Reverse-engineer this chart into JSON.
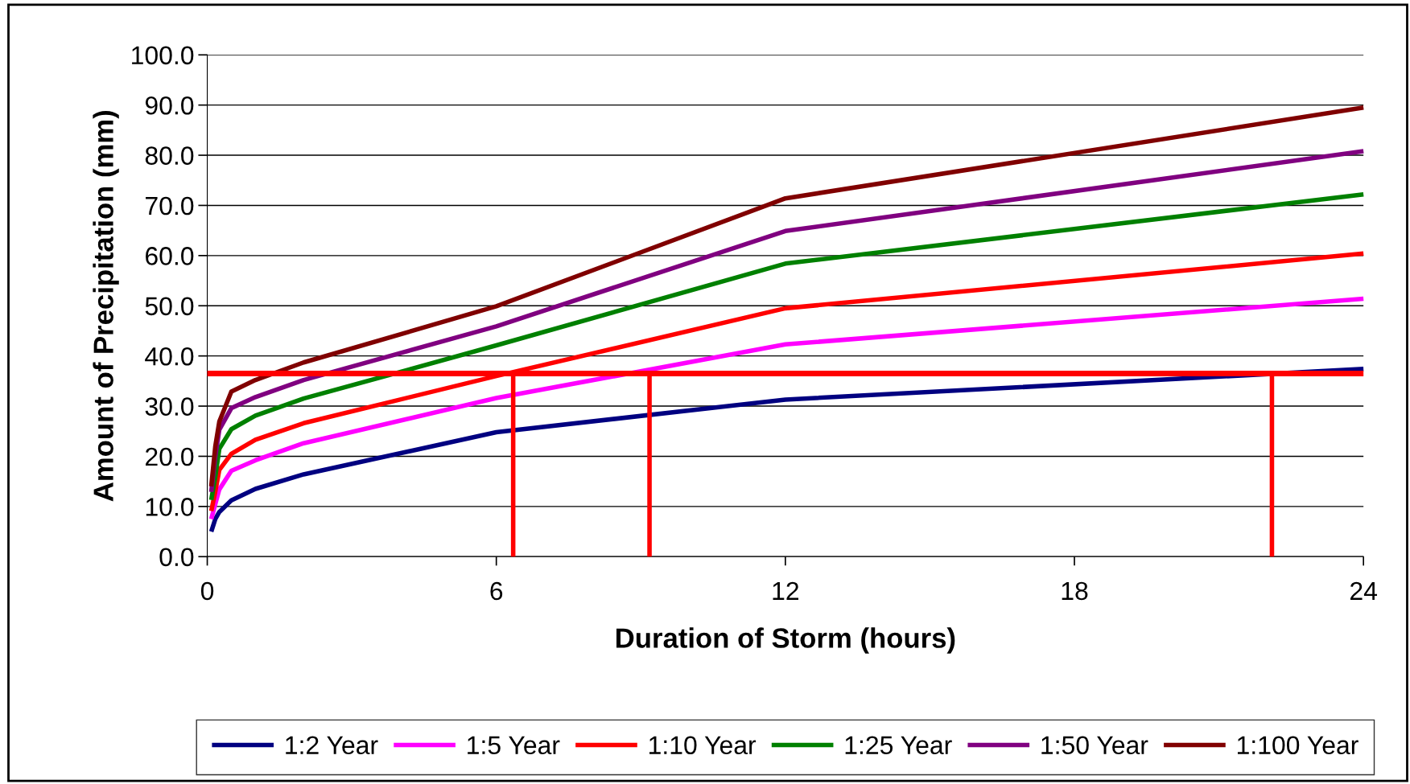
{
  "chart_data": {
    "type": "line",
    "xlabel": "Duration of Storm (hours)",
    "ylabel": "Amount of Precipitation (mm)",
    "xlim": [
      0,
      24
    ],
    "xticks": [
      0,
      6,
      12,
      18,
      24
    ],
    "ylim": [
      0,
      100
    ],
    "yticks": [
      {
        "value": 0,
        "label": "0.0"
      },
      {
        "value": 10,
        "label": "10.0"
      },
      {
        "value": 20,
        "label": "20.0"
      },
      {
        "value": 30,
        "label": "30.0"
      },
      {
        "value": 40,
        "label": "40.0"
      },
      {
        "value": 50,
        "label": "50.0"
      },
      {
        "value": 60,
        "label": "60.0"
      },
      {
        "value": 70,
        "label": "70.0"
      },
      {
        "value": 80,
        "label": "80.0"
      },
      {
        "value": 90,
        "label": "90.0"
      },
      {
        "value": 100,
        "label": "100.0"
      }
    ],
    "grid": "y",
    "legend": "bottom",
    "marker": "none",
    "line_style": "solid",
    "x": [
      0.083,
      0.167,
      0.25,
      0.5,
      1,
      2,
      6,
      12,
      24
    ],
    "series": [
      {
        "name": "1:2 Year",
        "color": "#000080",
        "values": [
          5.0,
          7.5,
          8.9,
          11.2,
          13.5,
          16.4,
          24.8,
          31.3,
          37.4
        ]
      },
      {
        "name": "1:5 Year",
        "color": "#ff00ff",
        "values": [
          7.5,
          10.5,
          13.4,
          17.1,
          19.2,
          22.6,
          31.6,
          42.3,
          51.4
        ]
      },
      {
        "name": "1:10 Year",
        "color": "#ff0000",
        "values": [
          9.1,
          13.0,
          17.3,
          20.5,
          23.3,
          26.6,
          36.0,
          49.5,
          60.4
        ]
      },
      {
        "name": "1:25 Year",
        "color": "#008000",
        "values": [
          11.3,
          16.0,
          21.5,
          25.4,
          28.1,
          31.5,
          42.1,
          58.4,
          72.2
        ]
      },
      {
        "name": "1:50 Year",
        "color": "#800080",
        "values": [
          12.9,
          20.0,
          25.3,
          29.6,
          31.8,
          35.2,
          45.9,
          64.9,
          80.8
        ]
      },
      {
        "name": "1:100 Year",
        "color": "#800000",
        "values": [
          14.0,
          22.0,
          26.9,
          32.9,
          35.2,
          38.7,
          49.9,
          71.4,
          89.5
        ]
      },
      {
        "x": [
          6.35,
          6.35
        ],
        "color": "#ff0000",
        "values": [
          0,
          36.5
        ]
      },
      {
        "x": [
          9.18,
          9.18
        ],
        "color": "#ff0000",
        "values": [
          0,
          36.5
        ]
      },
      {
        "x": [
          22.1,
          22.1
        ],
        "color": "#ff0000",
        "values": [
          0,
          36.5
        ]
      }
    ],
    "ref_lines": [
      {
        "axis": "y",
        "value": 36.5,
        "color": "#ff0000",
        "line_style": "solid"
      }
    ]
  }
}
